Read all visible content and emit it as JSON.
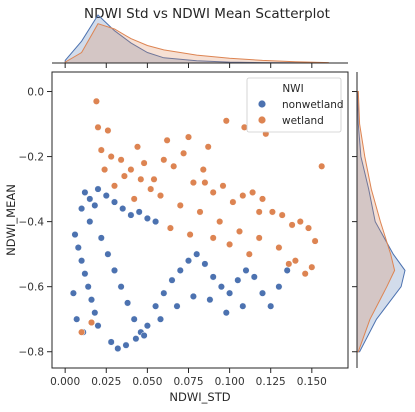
{
  "chart_data": {
    "type": "scatter",
    "title": "NDWI Std vs NDWI Mean Scatterplot",
    "xlabel": "NDWI_STD",
    "ylabel": "NDWI_MEAN",
    "xlim": [
      -0.008,
      0.172
    ],
    "ylim": [
      -0.85,
      0.06
    ],
    "xticks": [
      0.0,
      0.025,
      0.05,
      0.075,
      0.1,
      0.125,
      0.15
    ],
    "xtick_labels": [
      "0.000",
      "0.025",
      "0.050",
      "0.075",
      "0.100",
      "0.125",
      "0.150"
    ],
    "yticks": [
      0.0,
      -0.2,
      -0.4,
      -0.6,
      -0.8
    ],
    "ytick_labels": [
      "0.0",
      "−0.2",
      "−0.4",
      "−0.6",
      "−0.8"
    ],
    "grid": false,
    "legend": {
      "title": "NWI",
      "placement": "top-right",
      "entries": [
        {
          "label": "nonwetland",
          "color": "#4c72b0"
        },
        {
          "label": "wetland",
          "color": "#dd8452"
        }
      ]
    },
    "series": [
      {
        "name": "nonwetland",
        "color": "#4c72b0",
        "points": [
          [
            0.012,
            -0.31
          ],
          [
            0.015,
            -0.33
          ],
          [
            0.02,
            -0.3
          ],
          [
            0.025,
            -0.32
          ],
          [
            0.01,
            -0.36
          ],
          [
            0.018,
            -0.35
          ],
          [
            0.03,
            -0.34
          ],
          [
            0.035,
            -0.36
          ],
          [
            0.04,
            -0.38
          ],
          [
            0.045,
            -0.37
          ],
          [
            0.05,
            -0.39
          ],
          [
            0.055,
            -0.4
          ],
          [
            0.006,
            -0.44
          ],
          [
            0.008,
            -0.48
          ],
          [
            0.01,
            -0.52
          ],
          [
            0.012,
            -0.56
          ],
          [
            0.014,
            -0.6
          ],
          [
            0.016,
            -0.64
          ],
          [
            0.018,
            -0.68
          ],
          [
            0.02,
            -0.72
          ],
          [
            0.022,
            -0.45
          ],
          [
            0.026,
            -0.5
          ],
          [
            0.03,
            -0.55
          ],
          [
            0.034,
            -0.6
          ],
          [
            0.038,
            -0.65
          ],
          [
            0.042,
            -0.7
          ],
          [
            0.046,
            -0.74
          ],
          [
            0.05,
            -0.72
          ],
          [
            0.055,
            -0.66
          ],
          [
            0.06,
            -0.62
          ],
          [
            0.065,
            -0.58
          ],
          [
            0.07,
            -0.55
          ],
          [
            0.075,
            -0.52
          ],
          [
            0.08,
            -0.5
          ],
          [
            0.085,
            -0.53
          ],
          [
            0.09,
            -0.57
          ],
          [
            0.095,
            -0.6
          ],
          [
            0.1,
            -0.62
          ],
          [
            0.105,
            -0.58
          ],
          [
            0.11,
            -0.55
          ],
          [
            0.115,
            -0.57
          ],
          [
            0.12,
            -0.62
          ],
          [
            0.125,
            -0.66
          ],
          [
            0.13,
            -0.6
          ],
          [
            0.135,
            -0.55
          ],
          [
            0.028,
            -0.77
          ],
          [
            0.032,
            -0.79
          ],
          [
            0.037,
            -0.78
          ],
          [
            0.043,
            -0.76
          ],
          [
            0.048,
            -0.75
          ],
          [
            0.058,
            -0.7
          ],
          [
            0.068,
            -0.66
          ],
          [
            0.078,
            -0.63
          ],
          [
            0.088,
            -0.64
          ],
          [
            0.098,
            -0.68
          ],
          [
            0.108,
            -0.66
          ],
          [
            0.005,
            -0.62
          ],
          [
            0.007,
            -0.7
          ],
          [
            0.011,
            -0.74
          ],
          [
            0.015,
            -0.4
          ]
        ]
      },
      {
        "name": "wetland",
        "color": "#dd8452",
        "points": [
          [
            0.019,
            -0.03
          ],
          [
            0.02,
            -0.11
          ],
          [
            0.026,
            -0.12
          ],
          [
            0.022,
            -0.18
          ],
          [
            0.028,
            -0.2
          ],
          [
            0.034,
            -0.21
          ],
          [
            0.04,
            -0.24
          ],
          [
            0.048,
            -0.22
          ],
          [
            0.054,
            -0.27
          ],
          [
            0.06,
            -0.21
          ],
          [
            0.066,
            -0.23
          ],
          [
            0.072,
            -0.19
          ],
          [
            0.078,
            -0.28
          ],
          [
            0.084,
            -0.24
          ],
          [
            0.09,
            -0.31
          ],
          [
            0.096,
            -0.29
          ],
          [
            0.102,
            -0.34
          ],
          [
            0.108,
            -0.32
          ],
          [
            0.114,
            -0.31
          ],
          [
            0.12,
            -0.33
          ],
          [
            0.126,
            -0.37
          ],
          [
            0.132,
            -0.38
          ],
          [
            0.138,
            -0.41
          ],
          [
            0.143,
            -0.4
          ],
          [
            0.148,
            -0.42
          ],
          [
            0.156,
            -0.23
          ],
          [
            0.152,
            -0.46
          ],
          [
            0.098,
            -0.09
          ],
          [
            0.109,
            -0.11
          ],
          [
            0.122,
            -0.13
          ],
          [
            0.062,
            -0.15
          ],
          [
            0.075,
            -0.14
          ],
          [
            0.087,
            -0.17
          ],
          [
            0.044,
            -0.17
          ],
          [
            0.036,
            -0.26
          ],
          [
            0.058,
            -0.32
          ],
          [
            0.07,
            -0.35
          ],
          [
            0.082,
            -0.37
          ],
          [
            0.094,
            -0.4
          ],
          [
            0.106,
            -0.43
          ],
          [
            0.118,
            -0.45
          ],
          [
            0.13,
            -0.48
          ],
          [
            0.14,
            -0.52
          ],
          [
            0.15,
            -0.54
          ],
          [
            0.112,
            -0.5
          ],
          [
            0.1,
            -0.47
          ],
          [
            0.09,
            -0.45
          ],
          [
            0.064,
            -0.42
          ],
          [
            0.052,
            -0.3
          ],
          [
            0.024,
            -0.24
          ],
          [
            0.03,
            -0.29
          ],
          [
            0.042,
            -0.33
          ],
          [
            0.136,
            -0.53
          ],
          [
            0.146,
            -0.56
          ],
          [
            0.085,
            -0.28
          ],
          [
            0.01,
            -0.74
          ],
          [
            0.016,
            -0.71
          ],
          [
            0.046,
            -0.27
          ],
          [
            0.118,
            -0.37
          ],
          [
            0.076,
            -0.44
          ]
        ]
      }
    ],
    "marginals": {
      "type": "kde",
      "x_top": {
        "x": [
          0.0,
          0.01,
          0.02,
          0.03,
          0.04,
          0.05,
          0.06,
          0.08,
          0.1,
          0.12,
          0.14,
          0.16
        ],
        "nonwetland": [
          0.3,
          2.5,
          5.5,
          3.7,
          2.3,
          1.2,
          0.6,
          0.25,
          0.1,
          0.05,
          0.02,
          0.0
        ],
        "wetland": [
          0.1,
          1.2,
          4.5,
          3.9,
          2.8,
          2.0,
          1.5,
          0.9,
          0.55,
          0.3,
          0.15,
          0.05
        ]
      },
      "y_right": {
        "y": [
          0.0,
          -0.1,
          -0.2,
          -0.3,
          -0.4,
          -0.5,
          -0.55,
          -0.6,
          -0.7,
          -0.8
        ],
        "nonwetland": [
          0.05,
          0.1,
          0.3,
          0.9,
          1.4,
          2.8,
          3.7,
          3.4,
          1.5,
          0.2
        ],
        "wetland": [
          0.1,
          0.2,
          0.6,
          1.1,
          1.8,
          2.6,
          2.9,
          2.3,
          1.0,
          0.1
        ]
      }
    }
  }
}
